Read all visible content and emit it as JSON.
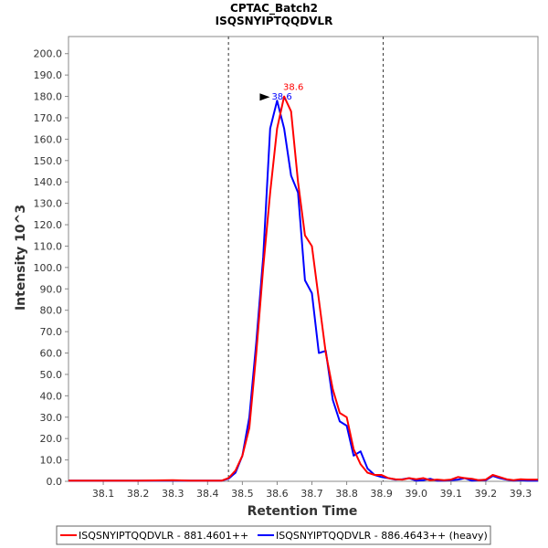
{
  "chart_data": {
    "type": "line",
    "title": "CPTAC_Batch2",
    "subtitle": "ISQSNYIPTQQDVLR",
    "xlabel": "Retention Time",
    "ylabel": "Intensity 10^3",
    "xlim": [
      38.0,
      39.35
    ],
    "ylim": [
      0,
      208
    ],
    "x_ticks": [
      38.1,
      38.2,
      38.3,
      38.4,
      38.5,
      38.6,
      38.7,
      38.8,
      38.9,
      39.0,
      39.1,
      39.2,
      39.3
    ],
    "x_tick_labels": [
      "38.1",
      "38.2",
      "38.3",
      "38.4",
      "38.5",
      "38.6",
      "38.7",
      "38.8",
      "38.9",
      "39.0",
      "39.1",
      "39.2",
      "39.3"
    ],
    "y_ticks": [
      0,
      10,
      20,
      30,
      40,
      50,
      60,
      70,
      80,
      90,
      100,
      110,
      120,
      130,
      140,
      150,
      160,
      170,
      180,
      190,
      200
    ],
    "y_tick_labels": [
      "0.0",
      "10.0",
      "20.0",
      "30.0",
      "40.0",
      "50.0",
      "60.0",
      "70.0",
      "80.0",
      "90.0",
      "100.0",
      "110.0",
      "120.0",
      "130.0",
      "140.0",
      "150.0",
      "160.0",
      "170.0",
      "180.0",
      "190.0",
      "200.0"
    ],
    "vlines": [
      38.46,
      38.905
    ],
    "series": [
      {
        "name": "ISQSNYIPTQQDVLR - 881.4601++",
        "color": "#ff0000",
        "peak_label": "38.6",
        "peak_x": 38.62,
        "peak_y": 180,
        "x": [
          38.0,
          38.1,
          38.2,
          38.3,
          38.35,
          38.4,
          38.44,
          38.46,
          38.48,
          38.5,
          38.52,
          38.54,
          38.56,
          38.58,
          38.6,
          38.62,
          38.64,
          38.66,
          38.68,
          38.7,
          38.72,
          38.74,
          38.76,
          38.78,
          38.8,
          38.82,
          38.84,
          38.86,
          38.88,
          38.9,
          38.92,
          38.94,
          38.96,
          38.98,
          39.0,
          39.02,
          39.04,
          39.06,
          39.08,
          39.1,
          39.12,
          39.14,
          39.16,
          39.18,
          39.2,
          39.22,
          39.24,
          39.26,
          39.28,
          39.3,
          39.32,
          39.35
        ],
        "y": [
          0.3,
          0.3,
          0.3,
          0.5,
          0.3,
          0.3,
          0.3,
          1.5,
          5,
          12,
          25,
          60,
          100,
          135,
          165,
          180,
          173,
          140,
          115,
          110,
          85,
          60,
          43,
          32,
          30,
          15,
          8,
          4,
          3,
          3,
          1.5,
          1,
          0.8,
          1.5,
          1,
          1.5,
          0.5,
          0.8,
          0.5,
          0.8,
          2,
          1.5,
          1.2,
          0.5,
          0.8,
          3,
          2,
          1,
          0.5,
          1,
          0.8,
          0.8
        ]
      },
      {
        "name": "ISQSNYIPTQQDVLR - 886.4643++ (heavy)",
        "color": "#0000ff",
        "peak_label": "38.6",
        "peak_x": 38.6,
        "peak_y": 178,
        "x": [
          38.0,
          38.1,
          38.2,
          38.3,
          38.35,
          38.4,
          38.44,
          38.46,
          38.48,
          38.5,
          38.52,
          38.54,
          38.56,
          38.58,
          38.6,
          38.62,
          38.64,
          38.66,
          38.68,
          38.7,
          38.72,
          38.74,
          38.76,
          38.78,
          38.8,
          38.82,
          38.84,
          38.86,
          38.88,
          38.9,
          38.92,
          38.94,
          38.96,
          38.98,
          39.0,
          39.02,
          39.04,
          39.06,
          39.08,
          39.1,
          39.12,
          39.14,
          39.16,
          39.18,
          39.2,
          39.22,
          39.24,
          39.26,
          39.28,
          39.3,
          39.32,
          39.35
        ],
        "y": [
          0.3,
          0.3,
          0.3,
          0.3,
          0.3,
          0.3,
          0.3,
          1.2,
          4,
          12,
          30,
          65,
          105,
          165,
          178,
          165,
          143,
          135,
          94,
          88,
          60,
          61,
          38,
          28,
          26,
          12,
          14,
          6,
          3,
          2,
          1.5,
          0.8,
          1,
          1.5,
          0.3,
          0.5,
          1.2,
          0.3,
          0.3,
          0.5,
          0.8,
          1.5,
          0.3,
          0.5,
          0.5,
          2.5,
          1.5,
          0.8,
          0.3,
          0.5,
          0.3,
          0.3
        ]
      }
    ],
    "legend_position": "bottom"
  }
}
